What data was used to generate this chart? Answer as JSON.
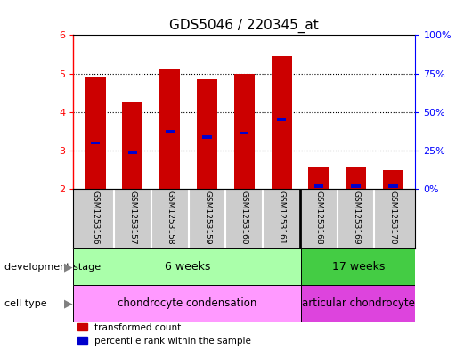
{
  "title": "GDS5046 / 220345_at",
  "samples": [
    "GSM1253156",
    "GSM1253157",
    "GSM1253158",
    "GSM1253159",
    "GSM1253160",
    "GSM1253161",
    "GSM1253168",
    "GSM1253169",
    "GSM1253170"
  ],
  "red_values": [
    4.9,
    4.25,
    5.1,
    4.85,
    5.0,
    5.45,
    2.55,
    2.55,
    2.5
  ],
  "blue_values": [
    3.2,
    2.95,
    3.5,
    3.35,
    3.45,
    3.8,
    2.07,
    2.07,
    2.07
  ],
  "bar_bottom": 2.0,
  "ylim": [
    2.0,
    6.0
  ],
  "yticks_left": [
    2,
    3,
    4,
    5,
    6
  ],
  "yticks_right": [
    0,
    25,
    50,
    75,
    100
  ],
  "red_color": "#cc0000",
  "blue_color": "#0000cc",
  "bar_width": 0.55,
  "blue_bar_height": 0.08,
  "tick_area_bg": "#cccccc",
  "group1_label": "6 weeks",
  "group2_label": "17 weeks",
  "group1_color": "#aaffaa",
  "group2_color": "#44cc44",
  "cell1_label": "chondrocyte condensation",
  "cell2_label": "articular chondrocyte",
  "cell1_color": "#ff99ff",
  "cell2_color": "#dd44dd",
  "dev_stage_label": "development stage",
  "cell_type_label": "cell type",
  "legend_red": "transformed count",
  "legend_blue": "percentile rank within the sample",
  "group1_count": 6,
  "group2_count": 3,
  "title_fontsize": 11,
  "axis_fontsize": 8,
  "label_fontsize": 9
}
